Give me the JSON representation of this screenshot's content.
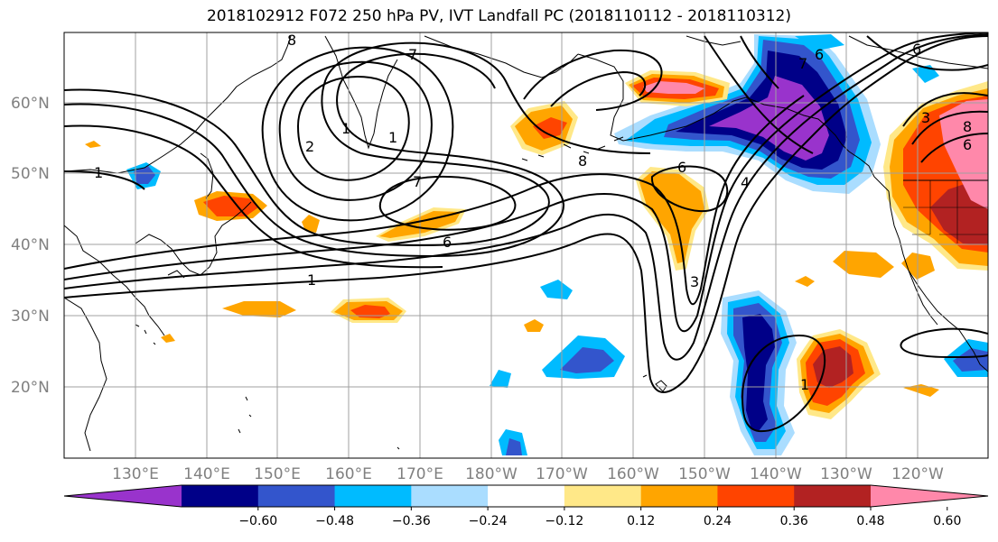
{
  "title": "2018102912 F072 250 hPa PV, IVT Landfall PC (2018110112 - 2018110312)",
  "lat_labels": [
    "60°N",
    "50°N",
    "40°N",
    "30°N",
    "20°N"
  ],
  "lon_labels": [
    "130°E",
    "140°E",
    "150°E",
    "160°E",
    "170°E",
    "180°W",
    "170°W",
    "160°W",
    "150°W",
    "140°W",
    "130°W",
    "120°W"
  ],
  "colorbar": {
    "ticks": [
      "−0.60",
      "−0.48",
      "−0.36",
      "−0.24",
      "−0.12",
      "0.12",
      "0.24",
      "0.36",
      "0.48",
      "0.60"
    ],
    "colors": [
      "#9933cc",
      "#000088",
      "#3355cc",
      "#00bbff",
      "#aaddff",
      "#ffffff",
      "#ffe888",
      "#ffa500",
      "#ff4400",
      "#b22222",
      "#ff88aa"
    ]
  },
  "contour_labels": [
    "8",
    "7",
    "2",
    "1",
    "1",
    "1",
    "7",
    "6",
    "1",
    "6",
    "8",
    "7",
    "6",
    "4",
    "3",
    "3",
    "6",
    "6",
    "8",
    "1"
  ]
}
